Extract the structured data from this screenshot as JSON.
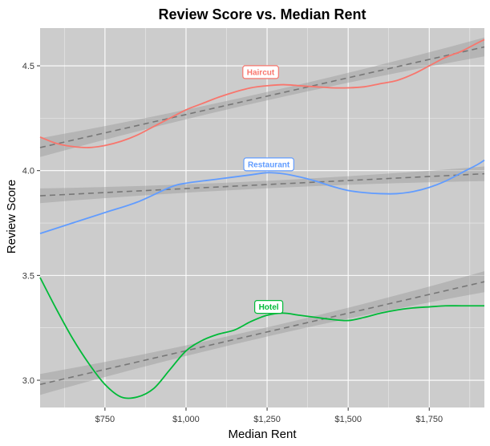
{
  "chart_data": {
    "type": "line",
    "title": "Review Score vs. Median Rent",
    "xlabel": "Median Rent",
    "ylabel": "Review Score",
    "xlim": [
      550,
      1920
    ],
    "ylim": [
      2.87,
      4.68
    ],
    "x_ticks": [
      750,
      1000,
      1250,
      1500,
      1750
    ],
    "x_tick_labels": [
      "$750",
      "$1,000",
      "$1,250",
      "$1,500",
      "$1,750"
    ],
    "y_ticks": [
      3.0,
      3.5,
      4.0,
      4.5
    ],
    "y_tick_labels": [
      "3.0",
      "3.5",
      "4.0",
      "4.5"
    ],
    "grid": true,
    "legend": "none",
    "series": [
      {
        "name": "Haircut",
        "color": "#F8766D",
        "smooth": [
          [
            550,
            4.16
          ],
          [
            600,
            4.13
          ],
          [
            650,
            4.115
          ],
          [
            700,
            4.11
          ],
          [
            750,
            4.12
          ],
          [
            800,
            4.14
          ],
          [
            850,
            4.17
          ],
          [
            900,
            4.21
          ],
          [
            950,
            4.25
          ],
          [
            1000,
            4.29
          ],
          [
            1050,
            4.32
          ],
          [
            1100,
            4.35
          ],
          [
            1150,
            4.375
          ],
          [
            1200,
            4.395
          ],
          [
            1250,
            4.405
          ],
          [
            1300,
            4.41
          ],
          [
            1350,
            4.405
          ],
          [
            1400,
            4.4
          ],
          [
            1450,
            4.395
          ],
          [
            1500,
            4.395
          ],
          [
            1550,
            4.4
          ],
          [
            1600,
            4.415
          ],
          [
            1650,
            4.43
          ],
          [
            1700,
            4.46
          ],
          [
            1750,
            4.5
          ],
          [
            1800,
            4.54
          ],
          [
            1850,
            4.57
          ],
          [
            1900,
            4.61
          ],
          [
            1920,
            4.625
          ]
        ],
        "trend": [
          [
            550,
            4.11
          ],
          [
            1920,
            4.59
          ]
        ],
        "band_halfwidth": [
          0.045,
          0.02,
          0.045
        ],
        "label_x": 1230,
        "label_y": 4.47
      },
      {
        "name": "Restaurant",
        "color": "#619CFF",
        "smooth": [
          [
            550,
            3.7
          ],
          [
            650,
            3.75
          ],
          [
            750,
            3.8
          ],
          [
            850,
            3.85
          ],
          [
            950,
            3.92
          ],
          [
            1000,
            3.94
          ],
          [
            1100,
            3.96
          ],
          [
            1200,
            3.98
          ],
          [
            1250,
            3.99
          ],
          [
            1300,
            3.985
          ],
          [
            1350,
            3.97
          ],
          [
            1400,
            3.95
          ],
          [
            1450,
            3.925
          ],
          [
            1500,
            3.905
          ],
          [
            1550,
            3.895
          ],
          [
            1600,
            3.89
          ],
          [
            1650,
            3.89
          ],
          [
            1700,
            3.9
          ],
          [
            1750,
            3.92
          ],
          [
            1800,
            3.95
          ],
          [
            1850,
            3.99
          ],
          [
            1900,
            4.03
          ],
          [
            1920,
            4.05
          ]
        ],
        "trend": [
          [
            550,
            3.88
          ],
          [
            1920,
            3.985
          ]
        ],
        "band_halfwidth": [
          0.035,
          0.018,
          0.035
        ],
        "label_x": 1255,
        "label_y": 4.03
      },
      {
        "name": "Hotel",
        "color": "#00BA38",
        "smooth": [
          [
            550,
            3.49
          ],
          [
            600,
            3.34
          ],
          [
            650,
            3.2
          ],
          [
            700,
            3.08
          ],
          [
            750,
            2.98
          ],
          [
            800,
            2.92
          ],
          [
            850,
            2.92
          ],
          [
            900,
            2.96
          ],
          [
            950,
            3.05
          ],
          [
            1000,
            3.14
          ],
          [
            1050,
            3.19
          ],
          [
            1100,
            3.22
          ],
          [
            1150,
            3.24
          ],
          [
            1200,
            3.28
          ],
          [
            1250,
            3.31
          ],
          [
            1300,
            3.32
          ],
          [
            1350,
            3.31
          ],
          [
            1400,
            3.3
          ],
          [
            1450,
            3.29
          ],
          [
            1500,
            3.285
          ],
          [
            1550,
            3.3
          ],
          [
            1600,
            3.32
          ],
          [
            1650,
            3.335
          ],
          [
            1700,
            3.345
          ],
          [
            1750,
            3.35
          ],
          [
            1800,
            3.355
          ],
          [
            1850,
            3.355
          ],
          [
            1920,
            3.355
          ]
        ],
        "trend": [
          [
            550,
            2.98
          ],
          [
            1920,
            3.47
          ]
        ],
        "band_halfwidth": [
          0.05,
          0.022,
          0.05
        ],
        "label_x": 1255,
        "label_y": 3.35
      }
    ]
  }
}
